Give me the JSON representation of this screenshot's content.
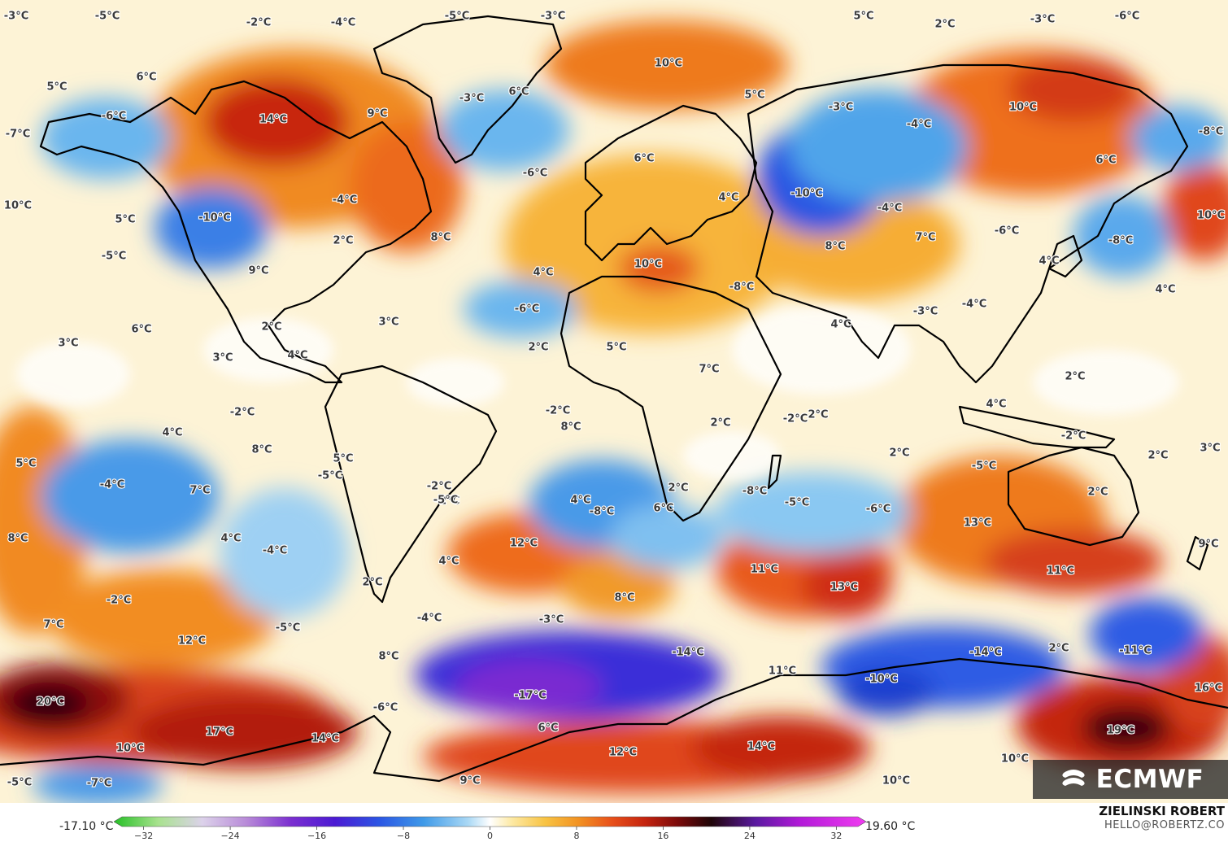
{
  "map": {
    "colors": {
      "cold_deep": "#4b12c8",
      "cold_violet": "#7a2bd1",
      "cold_blue": "#2c5fe6",
      "cool_blue": "#4aa6ea",
      "light_blue": "#a7d6f4",
      "neutral": "#ffffff",
      "light_yellow": "#fde9a3",
      "yellow": "#f8c343",
      "orange": "#f29222",
      "red_orange": "#e8501a",
      "red": "#c5240f",
      "dark_red": "#7a0a0a",
      "near_black": "#2a0308",
      "coastline": "#000000"
    },
    "labels": [
      "-3°C",
      "-5°C",
      "-2°C",
      "-4°C",
      "-5°C",
      "-3°C",
      "5°C",
      "2°C",
      "-3°C",
      "-6°C",
      "5°C",
      "6°C",
      "14°C",
      "9°C",
      "-6°C",
      "-7°C",
      "-3°C",
      "6°C",
      "10°C",
      "5°C",
      "-3°C",
      "-4°C",
      "10°C",
      "-8°C",
      "10°C",
      "5°C",
      "-10°C",
      "-5°C",
      "-4°C",
      "2°C",
      "8°C",
      "-6°C",
      "6°C",
      "4°C",
      "-10°C",
      "-4°C",
      "7°C",
      "-6°C",
      "-8°C",
      "10°C",
      "6°C",
      "9°C",
      "4°C",
      "10°C",
      "-8°C",
      "8°C",
      "4°C",
      "4°C",
      "6°C",
      "3°C",
      "2°C",
      "3°C",
      "-6°C",
      "4°C",
      "3°C",
      "2°C",
      "5°C",
      "7°C",
      "4°C",
      "-3°C",
      "-4°C",
      "-2°C",
      "4°C",
      "-2°C",
      "8°C",
      "2°C",
      "-2°C",
      "2°C",
      "4°C",
      "2°C",
      "-2°C",
      "3°C",
      "5°C",
      "8°C",
      "5°C",
      "-5°C",
      "-2°C",
      "2°C",
      "-5°C",
      "2°C",
      "-8°C",
      "-4°C",
      "7°C",
      "-2°C",
      "-5°C",
      "4°C",
      "-8°C",
      "6°C",
      "2°C",
      "-5°C",
      "-6°C",
      "13°C",
      "2°C",
      "8°C",
      "4°C",
      "12°C",
      "-4°C",
      "4°C",
      "9°C",
      "2°C",
      "-2°C",
      "11°C",
      "13°C",
      "11°C",
      "8°C",
      "7°C",
      "-5°C",
      "-4°C",
      "-3°C",
      "12°C",
      "8°C",
      "-14°C",
      "-14°C",
      "2°C",
      "-11°C",
      "11°C",
      "-10°C",
      "-6°C",
      "-17°C",
      "16°C",
      "20°C",
      "6°C",
      "17°C",
      "14°C",
      "10°C",
      "12°C",
      "14°C",
      "19°C",
      "10°C",
      "-5°C",
      "-7°C",
      "9°C",
      "10°C"
    ]
  },
  "logo": {
    "text": "ECMWF"
  },
  "colorbar": {
    "min_label": "-17.10 °C",
    "max_label": "19.60 °C",
    "ticks": [
      "−32",
      "−24",
      "−16",
      "−8",
      "0",
      "8",
      "16",
      "24",
      "32"
    ],
    "tick_values": [
      -32,
      -24,
      -16,
      -8,
      0,
      8,
      16,
      24,
      32
    ],
    "range": [
      -34,
      34
    ],
    "stops": [
      {
        "v": -34,
        "c": "#25c026"
      },
      {
        "v": -30,
        "c": "#a8e28e"
      },
      {
        "v": -26,
        "c": "#dcd2ea"
      },
      {
        "v": -22,
        "c": "#b88ad8"
      },
      {
        "v": -18,
        "c": "#7b2fd0"
      },
      {
        "v": -14,
        "c": "#4b1ad3"
      },
      {
        "v": -10,
        "c": "#2b56e4"
      },
      {
        "v": -6,
        "c": "#3f9ae8"
      },
      {
        "v": -2,
        "c": "#a9d8f5"
      },
      {
        "v": 0,
        "c": "#ffffff"
      },
      {
        "v": 2,
        "c": "#fde9a3"
      },
      {
        "v": 5,
        "c": "#f8c343"
      },
      {
        "v": 8,
        "c": "#f29222"
      },
      {
        "v": 11,
        "c": "#e8501a"
      },
      {
        "v": 14,
        "c": "#c5240f"
      },
      {
        "v": 17,
        "c": "#7a0a0a"
      },
      {
        "v": 20,
        "c": "#1f0508"
      },
      {
        "v": 24,
        "c": "#5a1aa0"
      },
      {
        "v": 28,
        "c": "#b21ad8"
      },
      {
        "v": 34,
        "c": "#f03cf0"
      }
    ]
  },
  "credits": {
    "name": "ZIELINSKI ROBERT",
    "email": "HELLO@ROBERTZ.CO"
  }
}
